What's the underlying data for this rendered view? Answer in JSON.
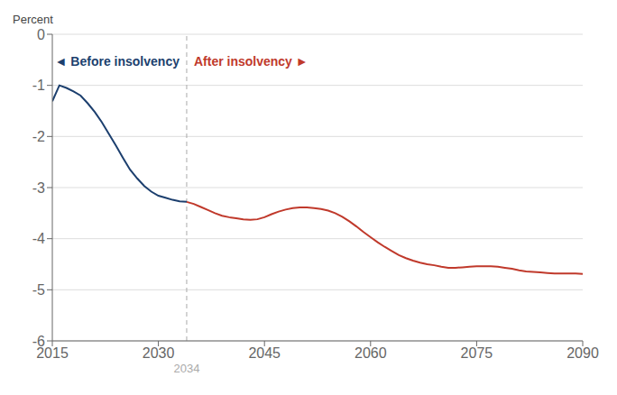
{
  "chart_data": {
    "type": "line",
    "ylabel": "Percent",
    "xlim": [
      2015,
      2090
    ],
    "xticks": [
      2015,
      2030,
      2045,
      2060,
      2075,
      2090
    ],
    "ylim": [
      -6,
      0
    ],
    "yticks": [
      0,
      -1,
      -2,
      -3,
      -4,
      -5,
      -6
    ],
    "grid": "y",
    "series": [
      {
        "color": "#1c3f6e",
        "x": [
          2015,
          2016,
          2017,
          2018,
          2019,
          2020,
          2021,
          2022,
          2023,
          2024,
          2025,
          2026,
          2027,
          2028,
          2029,
          2030,
          2031,
          2032,
          2033,
          2034
        ],
        "values": [
          -1.31,
          -1.0,
          -1.05,
          -1.12,
          -1.2,
          -1.35,
          -1.52,
          -1.72,
          -1.95,
          -2.18,
          -2.42,
          -2.65,
          -2.82,
          -2.97,
          -3.08,
          -3.16,
          -3.2,
          -3.24,
          -3.27,
          -3.28
        ]
      },
      {
        "color": "#c0392b",
        "x": [
          2034,
          2035,
          2036,
          2037,
          2038,
          2039,
          2040,
          2041,
          2042,
          2043,
          2044,
          2045,
          2046,
          2047,
          2048,
          2049,
          2050,
          2051,
          2052,
          2053,
          2054,
          2055,
          2056,
          2057,
          2058,
          2059,
          2060,
          2061,
          2062,
          2063,
          2064,
          2065,
          2066,
          2067,
          2068,
          2069,
          2070,
          2071,
          2072,
          2073,
          2074,
          2075,
          2076,
          2077,
          2078,
          2079,
          2080,
          2081,
          2082,
          2083,
          2084,
          2085,
          2086,
          2087,
          2088,
          2089,
          2090
        ],
        "values": [
          -3.28,
          -3.32,
          -3.38,
          -3.44,
          -3.5,
          -3.55,
          -3.58,
          -3.6,
          -3.62,
          -3.63,
          -3.62,
          -3.58,
          -3.52,
          -3.47,
          -3.43,
          -3.4,
          -3.39,
          -3.39,
          -3.4,
          -3.42,
          -3.45,
          -3.5,
          -3.57,
          -3.66,
          -3.76,
          -3.87,
          -3.97,
          -4.07,
          -4.16,
          -4.24,
          -4.32,
          -4.38,
          -4.43,
          -4.47,
          -4.5,
          -4.52,
          -4.55,
          -4.57,
          -4.57,
          -4.56,
          -4.55,
          -4.54,
          -4.54,
          -4.54,
          -4.55,
          -4.57,
          -4.59,
          -4.62,
          -4.64,
          -4.65,
          -4.66,
          -4.67,
          -4.68,
          -4.68,
          -4.68,
          -4.68,
          -4.69
        ]
      }
    ],
    "vline": {
      "x": 2034,
      "label": "2034",
      "color": "#aaaaaa",
      "line_style": "dashed"
    },
    "annotations": [
      {
        "text": "◄ Before insolvency",
        "color": "#1c3f6e"
      },
      {
        "text": "After insolvency ►",
        "color": "#c0392b"
      }
    ]
  }
}
